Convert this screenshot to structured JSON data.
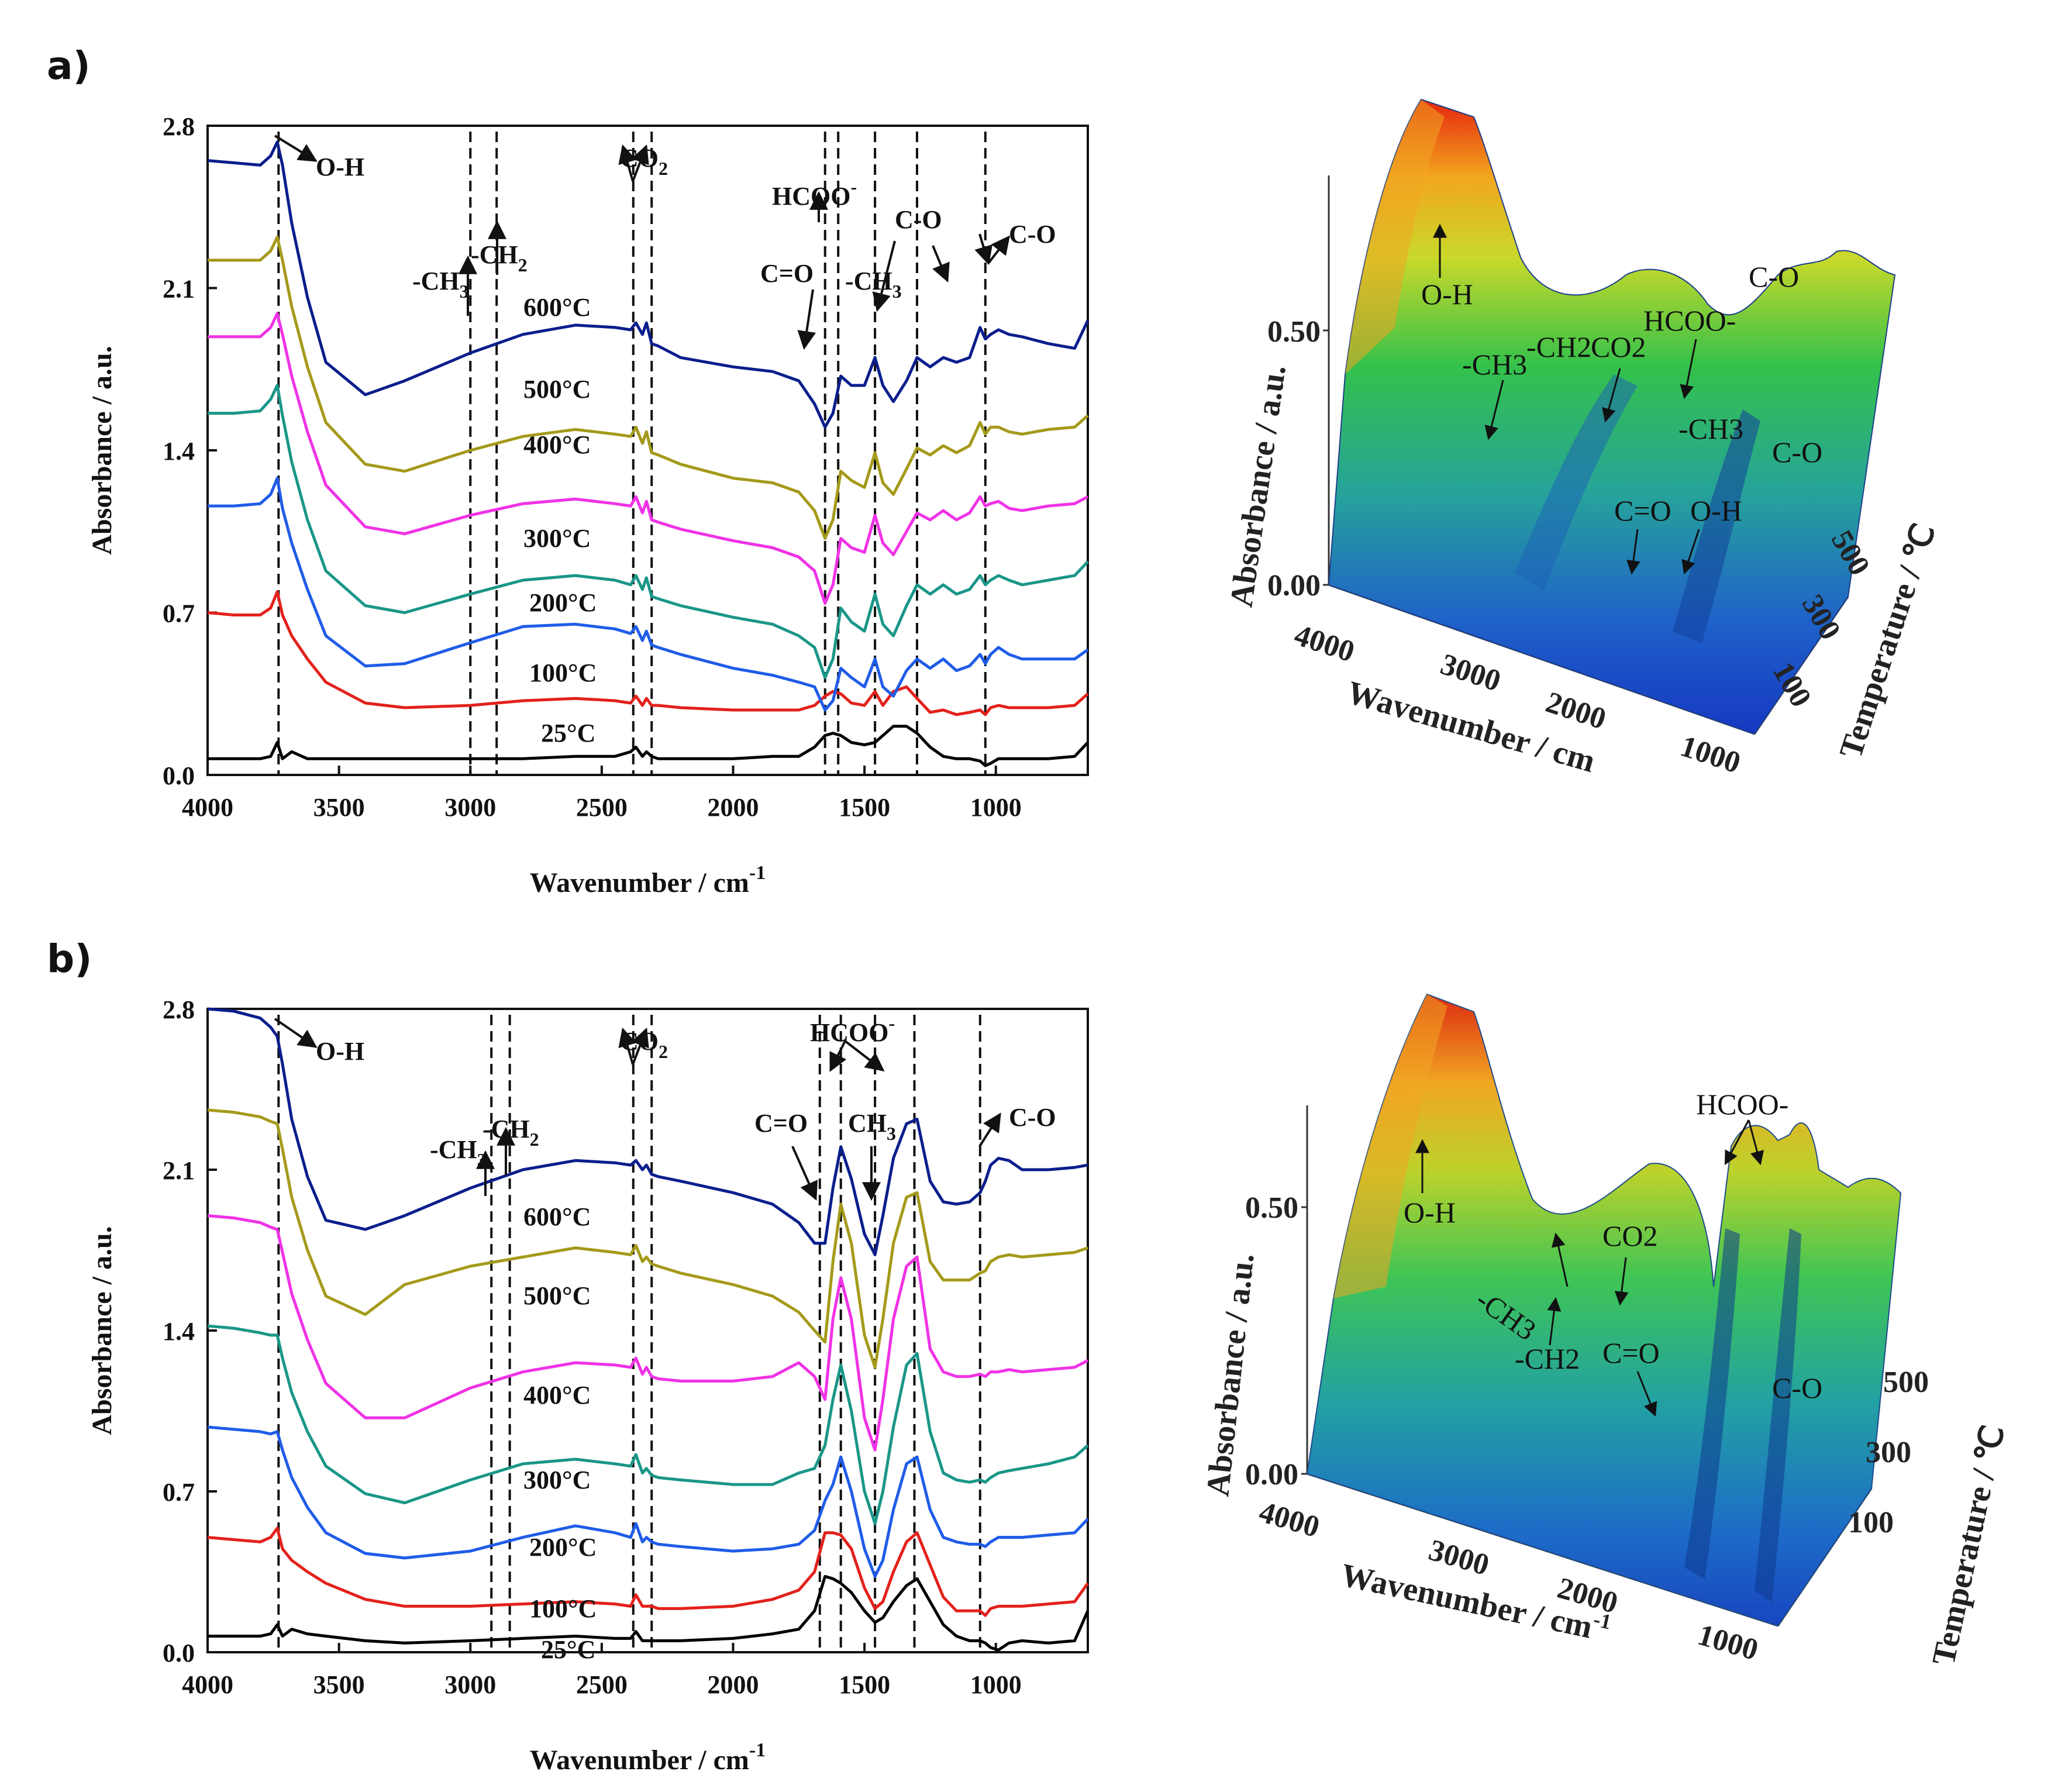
{
  "colors": {
    "25": "#000000",
    "100": "#e3211c",
    "200": "#1f5ce8",
    "300": "#1a9688",
    "400": "#f032e6",
    "500": "#a49a1a",
    "600": "#0b1e8c"
  },
  "chart_data": [
    {
      "panel": "a)",
      "type": "line",
      "xlabel": "Wavenumber / cm",
      "xlabel_sup": "-1",
      "ylabel": "Absorbance / a.u.",
      "xlim": [
        4000,
        650
      ],
      "ylim": [
        0.0,
        2.8
      ],
      "xticks": [
        "4000",
        "3500",
        "3000",
        "2500",
        "2000",
        "1500",
        "1000"
      ],
      "xtick_values": [
        4000,
        3500,
        3000,
        2500,
        2000,
        1500,
        1000
      ],
      "yticks": [
        "0.0",
        "0.7",
        "1.4",
        "2.1",
        "2.8"
      ],
      "ytick_values": [
        0.0,
        0.7,
        1.4,
        2.1,
        2.8
      ],
      "x": [
        4000,
        3900,
        3800,
        3760,
        3735,
        3715,
        3680,
        3620,
        3550,
        3400,
        3250,
        3000,
        2800,
        2600,
        2450,
        2390,
        2370,
        2345,
        2330,
        2310,
        2285,
        2200,
        2000,
        1850,
        1750,
        1690,
        1650,
        1620,
        1590,
        1550,
        1500,
        1460,
        1430,
        1390,
        1340,
        1300,
        1250,
        1200,
        1150,
        1100,
        1060,
        1040,
        1020,
        990,
        950,
        900,
        800,
        700,
        650
      ],
      "series": [
        {
          "name": "25°C",
          "color_key": "25",
          "label": "25°C",
          "values": [
            0.07,
            0.07,
            0.07,
            0.08,
            0.14,
            0.07,
            0.1,
            0.07,
            0.07,
            0.07,
            0.07,
            0.07,
            0.07,
            0.08,
            0.08,
            0.1,
            0.12,
            0.08,
            0.1,
            0.08,
            0.07,
            0.07,
            0.07,
            0.08,
            0.08,
            0.12,
            0.17,
            0.18,
            0.17,
            0.14,
            0.13,
            0.14,
            0.17,
            0.21,
            0.21,
            0.18,
            0.12,
            0.08,
            0.07,
            0.07,
            0.06,
            0.04,
            0.05,
            0.07,
            0.07,
            0.07,
            0.07,
            0.08,
            0.14
          ]
        },
        {
          "name": "100°C",
          "color_key": "100",
          "label": "100°C",
          "values": [
            0.7,
            0.69,
            0.69,
            0.72,
            0.79,
            0.69,
            0.6,
            0.5,
            0.4,
            0.31,
            0.29,
            0.3,
            0.32,
            0.33,
            0.32,
            0.31,
            0.34,
            0.3,
            0.33,
            0.3,
            0.3,
            0.29,
            0.28,
            0.28,
            0.28,
            0.3,
            0.34,
            0.36,
            0.35,
            0.31,
            0.3,
            0.36,
            0.3,
            0.36,
            0.38,
            0.33,
            0.27,
            0.28,
            0.26,
            0.27,
            0.28,
            0.26,
            0.29,
            0.3,
            0.29,
            0.29,
            0.29,
            0.3,
            0.35
          ]
        },
        {
          "name": "200°C",
          "color_key": "200",
          "label": "200°C",
          "values": [
            1.16,
            1.16,
            1.17,
            1.21,
            1.28,
            1.15,
            1.0,
            0.8,
            0.6,
            0.47,
            0.48,
            0.57,
            0.64,
            0.65,
            0.63,
            0.61,
            0.64,
            0.58,
            0.62,
            0.56,
            0.55,
            0.52,
            0.46,
            0.43,
            0.4,
            0.38,
            0.28,
            0.32,
            0.46,
            0.42,
            0.38,
            0.5,
            0.38,
            0.34,
            0.45,
            0.5,
            0.46,
            0.5,
            0.45,
            0.47,
            0.52,
            0.48,
            0.52,
            0.55,
            0.52,
            0.5,
            0.5,
            0.5,
            0.54
          ]
        },
        {
          "name": "300°C",
          "color_key": "300",
          "label": "300°C",
          "values": [
            1.56,
            1.56,
            1.57,
            1.62,
            1.68,
            1.55,
            1.35,
            1.1,
            0.88,
            0.73,
            0.7,
            0.78,
            0.84,
            0.86,
            0.84,
            0.82,
            0.86,
            0.8,
            0.85,
            0.77,
            0.76,
            0.73,
            0.68,
            0.65,
            0.6,
            0.55,
            0.42,
            0.5,
            0.72,
            0.66,
            0.62,
            0.78,
            0.65,
            0.6,
            0.73,
            0.82,
            0.78,
            0.82,
            0.78,
            0.8,
            0.86,
            0.82,
            0.84,
            0.86,
            0.84,
            0.82,
            0.84,
            0.86,
            0.92
          ]
        },
        {
          "name": "400°C",
          "color_key": "400",
          "label": "400°C",
          "values": [
            1.89,
            1.89,
            1.89,
            1.93,
            1.99,
            1.9,
            1.72,
            1.48,
            1.25,
            1.07,
            1.04,
            1.12,
            1.17,
            1.19,
            1.17,
            1.16,
            1.2,
            1.13,
            1.18,
            1.1,
            1.09,
            1.06,
            1.01,
            0.98,
            0.94,
            0.88,
            0.74,
            0.82,
            1.02,
            0.98,
            0.96,
            1.12,
            1.0,
            0.95,
            1.05,
            1.13,
            1.1,
            1.14,
            1.1,
            1.13,
            1.2,
            1.16,
            1.17,
            1.18,
            1.15,
            1.14,
            1.16,
            1.17,
            1.2
          ]
        },
        {
          "name": "500°C",
          "color_key": "500",
          "label": "500°C",
          "values": [
            2.22,
            2.22,
            2.22,
            2.26,
            2.32,
            2.22,
            2.02,
            1.76,
            1.52,
            1.34,
            1.31,
            1.4,
            1.46,
            1.49,
            1.47,
            1.46,
            1.5,
            1.43,
            1.48,
            1.39,
            1.38,
            1.34,
            1.28,
            1.26,
            1.22,
            1.14,
            1.02,
            1.1,
            1.31,
            1.27,
            1.24,
            1.39,
            1.26,
            1.21,
            1.32,
            1.41,
            1.38,
            1.42,
            1.39,
            1.42,
            1.52,
            1.47,
            1.5,
            1.5,
            1.48,
            1.47,
            1.49,
            1.5,
            1.55
          ]
        },
        {
          "name": "600°C",
          "color_key": "600",
          "label": "600°C",
          "values": [
            2.65,
            2.64,
            2.63,
            2.67,
            2.73,
            2.63,
            2.38,
            2.06,
            1.78,
            1.64,
            1.7,
            1.82,
            1.9,
            1.94,
            1.93,
            1.92,
            1.95,
            1.9,
            1.95,
            1.86,
            1.85,
            1.8,
            1.76,
            1.74,
            1.7,
            1.6,
            1.5,
            1.56,
            1.72,
            1.68,
            1.68,
            1.8,
            1.68,
            1.61,
            1.7,
            1.8,
            1.76,
            1.8,
            1.78,
            1.8,
            1.93,
            1.88,
            1.9,
            1.92,
            1.9,
            1.89,
            1.86,
            1.84,
            1.96
          ]
        }
      ],
      "guide_lines": [
        3730,
        3000,
        2900,
        2380,
        2310,
        1650,
        1600,
        1460,
        1300,
        1040
      ],
      "annotations": [
        "O-H",
        "-CH3",
        "-CH2",
        "CO2",
        "HCOO-",
        "C=O",
        "-CH3",
        "C-O",
        "C-O"
      ]
    },
    {
      "panel": "b)",
      "type": "line",
      "xlabel": "Wavenumber / cm",
      "xlabel_sup": "-1",
      "ylabel": "Absorbance / a.u.",
      "xlim": [
        4000,
        650
      ],
      "ylim": [
        0.0,
        2.8
      ],
      "xticks": [
        "4000",
        "3500",
        "3000",
        "2500",
        "2000",
        "1500",
        "1000"
      ],
      "xtick_values": [
        4000,
        3500,
        3000,
        2500,
        2000,
        1500,
        1000
      ],
      "yticks": [
        "0.0",
        "0.7",
        "1.4",
        "2.1",
        "2.8"
      ],
      "ytick_values": [
        0.0,
        0.7,
        1.4,
        2.1,
        2.8
      ],
      "x": [
        4000,
        3900,
        3800,
        3760,
        3735,
        3715,
        3680,
        3620,
        3550,
        3400,
        3250,
        3000,
        2800,
        2600,
        2450,
        2390,
        2370,
        2345,
        2330,
        2310,
        2285,
        2200,
        2000,
        1850,
        1750,
        1690,
        1650,
        1620,
        1590,
        1550,
        1500,
        1460,
        1430,
        1390,
        1340,
        1300,
        1250,
        1200,
        1150,
        1100,
        1060,
        1040,
        1020,
        990,
        950,
        900,
        800,
        700,
        650
      ],
      "series": [
        {
          "name": "25°C",
          "color_key": "25",
          "label": "25°C",
          "values": [
            0.07,
            0.07,
            0.07,
            0.08,
            0.12,
            0.07,
            0.1,
            0.08,
            0.07,
            0.05,
            0.04,
            0.05,
            0.06,
            0.07,
            0.06,
            0.06,
            0.09,
            0.05,
            0.05,
            0.05,
            0.05,
            0.05,
            0.06,
            0.08,
            0.1,
            0.18,
            0.33,
            0.32,
            0.3,
            0.26,
            0.18,
            0.13,
            0.15,
            0.22,
            0.29,
            0.32,
            0.22,
            0.12,
            0.07,
            0.05,
            0.05,
            0.04,
            0.02,
            0.01,
            0.04,
            0.05,
            0.04,
            0.05,
            0.18
          ]
        },
        {
          "name": "100°C",
          "color_key": "100",
          "label": "100°C",
          "values": [
            0.5,
            0.49,
            0.48,
            0.5,
            0.54,
            0.45,
            0.4,
            0.35,
            0.3,
            0.23,
            0.2,
            0.2,
            0.21,
            0.22,
            0.21,
            0.2,
            0.25,
            0.2,
            0.2,
            0.2,
            0.19,
            0.19,
            0.2,
            0.23,
            0.27,
            0.35,
            0.52,
            0.52,
            0.51,
            0.45,
            0.28,
            0.19,
            0.22,
            0.35,
            0.48,
            0.52,
            0.38,
            0.24,
            0.18,
            0.18,
            0.18,
            0.16,
            0.19,
            0.2,
            0.2,
            0.2,
            0.21,
            0.22,
            0.3
          ]
        },
        {
          "name": "200°C",
          "color_key": "200",
          "label": "200°C",
          "values": [
            0.98,
            0.97,
            0.96,
            0.95,
            0.96,
            0.88,
            0.76,
            0.63,
            0.52,
            0.43,
            0.41,
            0.44,
            0.5,
            0.55,
            0.52,
            0.5,
            0.56,
            0.48,
            0.5,
            0.48,
            0.47,
            0.46,
            0.44,
            0.45,
            0.47,
            0.53,
            0.66,
            0.73,
            0.85,
            0.7,
            0.45,
            0.33,
            0.4,
            0.62,
            0.82,
            0.85,
            0.62,
            0.5,
            0.48,
            0.47,
            0.47,
            0.46,
            0.48,
            0.5,
            0.5,
            0.5,
            0.51,
            0.52,
            0.58
          ]
        },
        {
          "name": "300°C",
          "color_key": "300",
          "label": "300°C",
          "values": [
            1.42,
            1.41,
            1.39,
            1.38,
            1.38,
            1.28,
            1.13,
            0.96,
            0.81,
            0.69,
            0.65,
            0.75,
            0.82,
            0.84,
            0.82,
            0.81,
            0.86,
            0.78,
            0.8,
            0.77,
            0.76,
            0.75,
            0.73,
            0.73,
            0.78,
            0.8,
            0.9,
            1.1,
            1.25,
            1.05,
            0.7,
            0.56,
            0.7,
            0.98,
            1.25,
            1.3,
            0.96,
            0.78,
            0.75,
            0.74,
            0.75,
            0.74,
            0.76,
            0.78,
            0.79,
            0.8,
            0.82,
            0.85,
            0.9
          ]
        },
        {
          "name": "400°C",
          "color_key": "400",
          "label": "400°C",
          "values": [
            1.9,
            1.89,
            1.87,
            1.85,
            1.84,
            1.74,
            1.56,
            1.36,
            1.17,
            1.02,
            1.02,
            1.15,
            1.22,
            1.26,
            1.25,
            1.24,
            1.28,
            1.21,
            1.24,
            1.2,
            1.19,
            1.18,
            1.18,
            1.2,
            1.26,
            1.2,
            1.1,
            1.45,
            1.63,
            1.45,
            1.02,
            0.88,
            1.1,
            1.45,
            1.68,
            1.72,
            1.32,
            1.22,
            1.2,
            1.2,
            1.21,
            1.2,
            1.22,
            1.22,
            1.23,
            1.22,
            1.23,
            1.24,
            1.27
          ]
        },
        {
          "name": "500°C",
          "color_key": "500",
          "label": "500°C",
          "values": [
            2.36,
            2.35,
            2.33,
            2.31,
            2.3,
            2.19,
            1.98,
            1.75,
            1.55,
            1.47,
            1.6,
            1.68,
            1.72,
            1.76,
            1.74,
            1.73,
            1.77,
            1.7,
            1.72,
            1.69,
            1.68,
            1.65,
            1.6,
            1.55,
            1.48,
            1.4,
            1.35,
            1.7,
            1.95,
            1.78,
            1.38,
            1.24,
            1.45,
            1.78,
            1.98,
            2.0,
            1.7,
            1.62,
            1.62,
            1.62,
            1.65,
            1.66,
            1.7,
            1.72,
            1.73,
            1.72,
            1.73,
            1.74,
            1.76
          ]
        },
        {
          "name": "600°C",
          "color_key": "600",
          "label": "600°C",
          "values": [
            2.8,
            2.79,
            2.76,
            2.72,
            2.68,
            2.56,
            2.32,
            2.07,
            1.88,
            1.84,
            1.9,
            2.02,
            2.1,
            2.14,
            2.13,
            2.12,
            2.14,
            2.1,
            2.12,
            2.08,
            2.07,
            2.05,
            2.0,
            1.95,
            1.87,
            1.78,
            1.78,
            2.02,
            2.2,
            2.06,
            1.82,
            1.73,
            1.9,
            2.15,
            2.3,
            2.32,
            2.05,
            1.96,
            1.95,
            1.96,
            2.0,
            2.05,
            2.12,
            2.15,
            2.14,
            2.1,
            2.1,
            2.11,
            2.12
          ]
        }
      ],
      "guide_lines": [
        3730,
        2920,
        2850,
        2380,
        2310,
        1670,
        1590,
        1460,
        1310,
        1060
      ],
      "annotations": [
        "O-H",
        "-CH3",
        "-CH2",
        "CO2",
        "HCOO-",
        "C=O",
        "CH3",
        "C-O"
      ]
    }
  ],
  "surfaces": [
    {
      "zlabel": "Absorbance / a.u.",
      "xlabel": "Wavenumber / cm",
      "ylabel": "Temperature / ℃",
      "zticks": [
        "0.50",
        "0.00"
      ],
      "xticks": [
        "4000",
        "3000",
        "2000",
        "1000"
      ],
      "yticks": [
        "500",
        "300",
        "100"
      ],
      "annotations": [
        "O-H",
        "-CH3",
        "-CH2",
        "CO2",
        "HCOO-",
        "C-O",
        "-CH3",
        "C-O",
        "C=O",
        "O-H"
      ]
    },
    {
      "zlabel": "Absorbance / a.u.",
      "xlabel": "Wavenumber / cm",
      "xlabel_sup": "-1",
      "ylabel": "Temperature / ℃",
      "zticks": [
        "0.50",
        "0.00"
      ],
      "xticks": [
        "4000",
        "3000",
        "2000",
        "1000"
      ],
      "yticks": [
        "500",
        "300",
        "100"
      ],
      "annotations": [
        "O-H",
        "-CH3",
        "-CH2",
        "CO2",
        "C=O",
        "HCOO-",
        "C-O"
      ]
    }
  ]
}
